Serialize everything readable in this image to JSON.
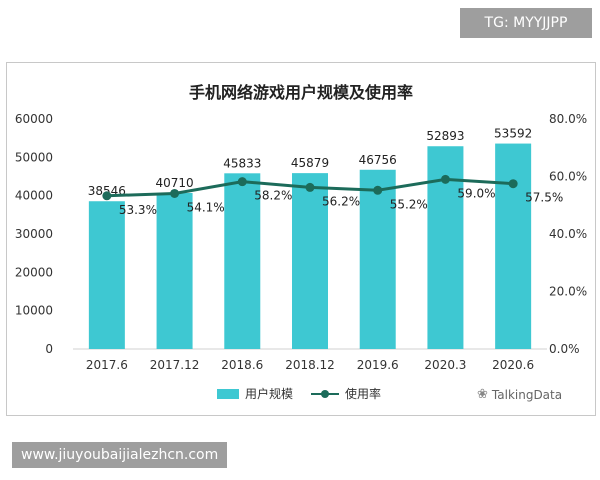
{
  "tag": "TG: MYYJJPP",
  "url": "www.jiuyoubaijialezhcn.com",
  "watermark": "TalkingData",
  "chart_data": {
    "type": "bar+line",
    "title": "手机网络游戏用户规模及使用率",
    "categories": [
      "2017.6",
      "2017.12",
      "2018.6",
      "2018.12",
      "2019.6",
      "2020.3",
      "2020.6"
    ],
    "series": [
      {
        "name": "用户规模",
        "type": "bar",
        "axis": "left",
        "values": [
          38546,
          40710,
          45833,
          45879,
          46756,
          52893,
          53592
        ],
        "labels": [
          "38546",
          "40710",
          "45833",
          "45879",
          "46756",
          "52893",
          "53592"
        ],
        "color": "#3ec8d2"
      },
      {
        "name": "使用率",
        "type": "line",
        "axis": "right",
        "values": [
          53.3,
          54.1,
          58.2,
          56.2,
          55.2,
          59.0,
          57.5
        ],
        "labels": [
          "53.3%",
          "54.1%",
          "58.2%",
          "56.2%",
          "55.2%",
          "59.0%",
          "57.5%"
        ],
        "color": "#1c6b5a"
      }
    ],
    "y_left": {
      "min": 0,
      "max": 60000,
      "ticks": [
        "0",
        "10000",
        "20000",
        "30000",
        "40000",
        "50000",
        "60000"
      ]
    },
    "y_right": {
      "min": 0,
      "max": 80,
      "ticks": [
        "0.0%",
        "20.0%",
        "40.0%",
        "60.0%",
        "80.0%"
      ]
    },
    "grid": false,
    "legend_position": "bottom"
  }
}
